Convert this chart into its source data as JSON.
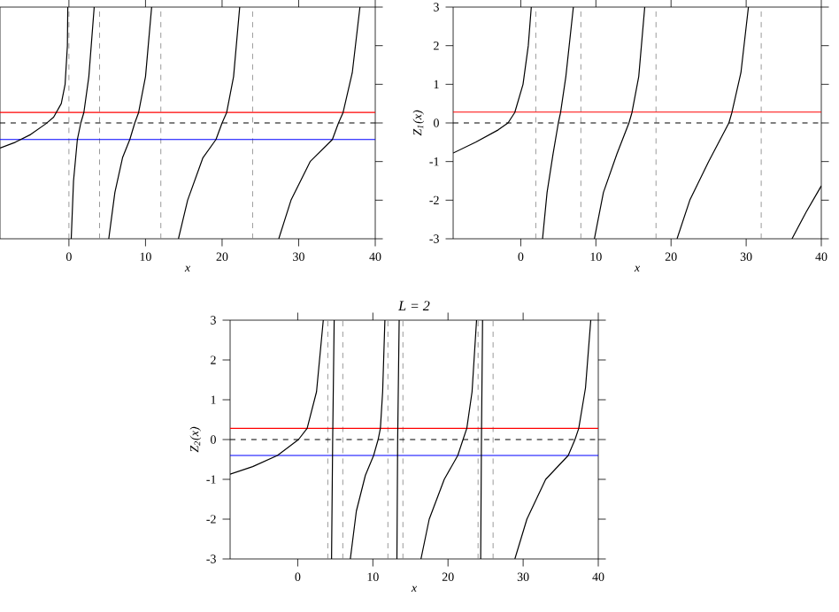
{
  "chart_data": [
    {
      "type": "line",
      "xlabel": "x",
      "xlim": [
        -9,
        40
      ],
      "ylim": [
        -3,
        3
      ],
      "xticks": [
        0,
        10,
        20,
        30,
        40
      ],
      "yticks": [
        -3,
        -2,
        -1,
        0,
        1,
        2,
        3
      ],
      "tick_labels": "x",
      "ref_lines": [
        {
          "axis": "x",
          "value": 0,
          "color": "#808080",
          "line_style": "dashed"
        },
        {
          "axis": "x",
          "value": 4,
          "color": "#808080",
          "line_style": "dashed"
        },
        {
          "axis": "x",
          "value": 12,
          "color": "#808080",
          "line_style": "dashed"
        },
        {
          "axis": "x",
          "value": 24,
          "color": "#808080",
          "line_style": "dashed"
        },
        {
          "axis": "y",
          "value": 0.27,
          "color": "#ff0000",
          "line_style": "solid"
        },
        {
          "axis": "y",
          "value": 0,
          "color": "#000000",
          "line_style": "dashed"
        },
        {
          "axis": "y",
          "value": -0.43,
          "color": "#0000ff",
          "line_style": "solid"
        }
      ],
      "series": [
        {
          "color": "#000000",
          "x": [
            -9,
            -7,
            -5,
            -3,
            -2,
            -1,
            -0.5,
            -0.2,
            -0.15
          ],
          "values": [
            -0.65,
            -0.5,
            -0.3,
            -0.02,
            0.15,
            0.5,
            1.0,
            2,
            3
          ]
        },
        {
          "color": "#000000",
          "x": [
            0.3,
            0.6,
            1.1,
            1.55,
            1.95,
            2.6,
            3.3
          ],
          "values": [
            -3,
            -1.5,
            -0.43,
            0,
            0.27,
            1.2,
            3
          ]
        },
        {
          "color": "#000000",
          "x": [
            5.2,
            6,
            7,
            7.95,
            8.6,
            9.1,
            10,
            10.8
          ],
          "values": [
            -3,
            -1.8,
            -0.9,
            -0.43,
            0,
            0.27,
            1.2,
            3
          ]
        },
        {
          "color": "#000000",
          "x": [
            14.3,
            15.5,
            17.5,
            19.2,
            20,
            20.6,
            21.5,
            22.3
          ],
          "values": [
            -3,
            -2,
            -0.9,
            -0.43,
            0,
            0.27,
            1.2,
            3
          ]
        },
        {
          "color": "#000000",
          "x": [
            27.4,
            29,
            31.5,
            34.4,
            35.2,
            35.8,
            37,
            38
          ],
          "values": [
            -3,
            -2,
            -1,
            -0.43,
            0,
            0.27,
            1.3,
            3
          ]
        }
      ]
    },
    {
      "type": "line",
      "xlabel": "x",
      "ylabel": "Z$_{1}$(x)",
      "xlim": [
        -9,
        40
      ],
      "ylim": [
        -3,
        3
      ],
      "xticks": [
        0,
        10,
        20,
        30,
        40
      ],
      "yticks": [
        -3,
        -2,
        -1,
        0,
        1,
        2,
        3
      ],
      "ref_lines": [
        {
          "axis": "x",
          "value": 2,
          "color": "#808080",
          "line_style": "dashed"
        },
        {
          "axis": "x",
          "value": 8,
          "color": "#808080",
          "line_style": "dashed"
        },
        {
          "axis": "x",
          "value": 18,
          "color": "#808080",
          "line_style": "dashed"
        },
        {
          "axis": "x",
          "value": 32,
          "color": "#808080",
          "line_style": "dashed"
        },
        {
          "axis": "y",
          "value": 0.28,
          "color": "#ff0000",
          "line_style": "solid"
        },
        {
          "axis": "y",
          "value": 0,
          "color": "#000000",
          "line_style": "dashed"
        }
      ],
      "series": [
        {
          "color": "#000000",
          "x": [
            -9,
            -6,
            -3,
            -1.7,
            -0.8,
            0.3,
            1,
            1.4
          ],
          "values": [
            -0.78,
            -0.5,
            -0.18,
            0,
            0.27,
            1,
            2,
            3
          ]
        },
        {
          "color": "#000000",
          "x": [
            2.9,
            3.5,
            4.3,
            5,
            5.3,
            6,
            7
          ],
          "values": [
            -3,
            -1.8,
            -0.8,
            0,
            0.27,
            1.2,
            3
          ]
        },
        {
          "color": "#000000",
          "x": [
            9.8,
            11,
            12.8,
            14.4,
            14.8,
            15.7,
            16.5
          ],
          "values": [
            -3,
            -1.8,
            -0.8,
            0,
            0.27,
            1.2,
            3
          ]
        },
        {
          "color": "#000000",
          "x": [
            20.8,
            22.5,
            25,
            27.7,
            28.1,
            29.3,
            30.3
          ],
          "values": [
            -3,
            -2,
            -1,
            0,
            0.27,
            1.3,
            3
          ]
        },
        {
          "color": "#000000",
          "x": [
            36.1,
            38,
            40
          ],
          "values": [
            -3,
            -2.3,
            -1.63
          ]
        }
      ]
    },
    {
      "type": "line",
      "title": "L = 2",
      "xlabel": "x",
      "ylabel": "Z$_{2}$(x)",
      "xlim": [
        -9,
        40
      ],
      "ylim": [
        -3,
        3
      ],
      "xticks": [
        0,
        10,
        20,
        30,
        40
      ],
      "yticks": [
        -3,
        -2,
        -1,
        0,
        1,
        2,
        3
      ],
      "ref_lines": [
        {
          "axis": "x",
          "value": 4,
          "color": "#808080",
          "line_style": "dashed"
        },
        {
          "axis": "x",
          "value": 6,
          "color": "#808080",
          "line_style": "dashed"
        },
        {
          "axis": "x",
          "value": 12,
          "color": "#808080",
          "line_style": "dashed"
        },
        {
          "axis": "x",
          "value": 14,
          "color": "#808080",
          "line_style": "dashed"
        },
        {
          "axis": "x",
          "value": 24,
          "color": "#808080",
          "line_style": "dashed"
        },
        {
          "axis": "x",
          "value": 26,
          "color": "#808080",
          "line_style": "dashed"
        },
        {
          "axis": "y",
          "value": 0.28,
          "color": "#ff0000",
          "line_style": "solid"
        },
        {
          "axis": "y",
          "value": 0,
          "color": "#000000",
          "line_style": "dashed"
        },
        {
          "axis": "y",
          "value": -0.4,
          "color": "#0000ff",
          "line_style": "solid"
        }
      ],
      "series": [
        {
          "color": "#000000",
          "x": [
            -9,
            -6,
            -2.7,
            0.1,
            1.25,
            2.5,
            3.4
          ],
          "values": [
            -0.87,
            -0.68,
            -0.4,
            0,
            0.28,
            1.2,
            3
          ]
        },
        {
          "color": "#000000",
          "x": [
            4.5,
            4.65,
            4.85
          ],
          "values": [
            -3,
            0,
            3
          ]
        },
        {
          "color": "#000000",
          "x": [
            7,
            7.8,
            9,
            10.1,
            10.7,
            11,
            11.3,
            11.6
          ],
          "values": [
            -3,
            -1.8,
            -0.9,
            -0.4,
            0,
            0.28,
            1.2,
            3
          ]
        },
        {
          "color": "#000000",
          "x": [
            13.2,
            13.3,
            13.5
          ],
          "values": [
            -3,
            0,
            3
          ]
        },
        {
          "color": "#000000",
          "x": [
            16.4,
            17.5,
            19.5,
            21.3,
            22,
            22.5,
            23.2,
            23.8
          ],
          "values": [
            -3,
            -2,
            -1,
            -0.4,
            0,
            0.28,
            1.2,
            3
          ]
        },
        {
          "color": "#000000",
          "x": [
            24.35,
            24.45,
            24.6
          ],
          "values": [
            -3,
            0,
            3
          ]
        },
        {
          "color": "#000000",
          "x": [
            28.9,
            30.5,
            33,
            36,
            36.9,
            37.4,
            38.3,
            39
          ],
          "values": [
            -3,
            -2,
            -1,
            -0.4,
            0,
            0.28,
            1.3,
            3
          ]
        }
      ]
    }
  ]
}
